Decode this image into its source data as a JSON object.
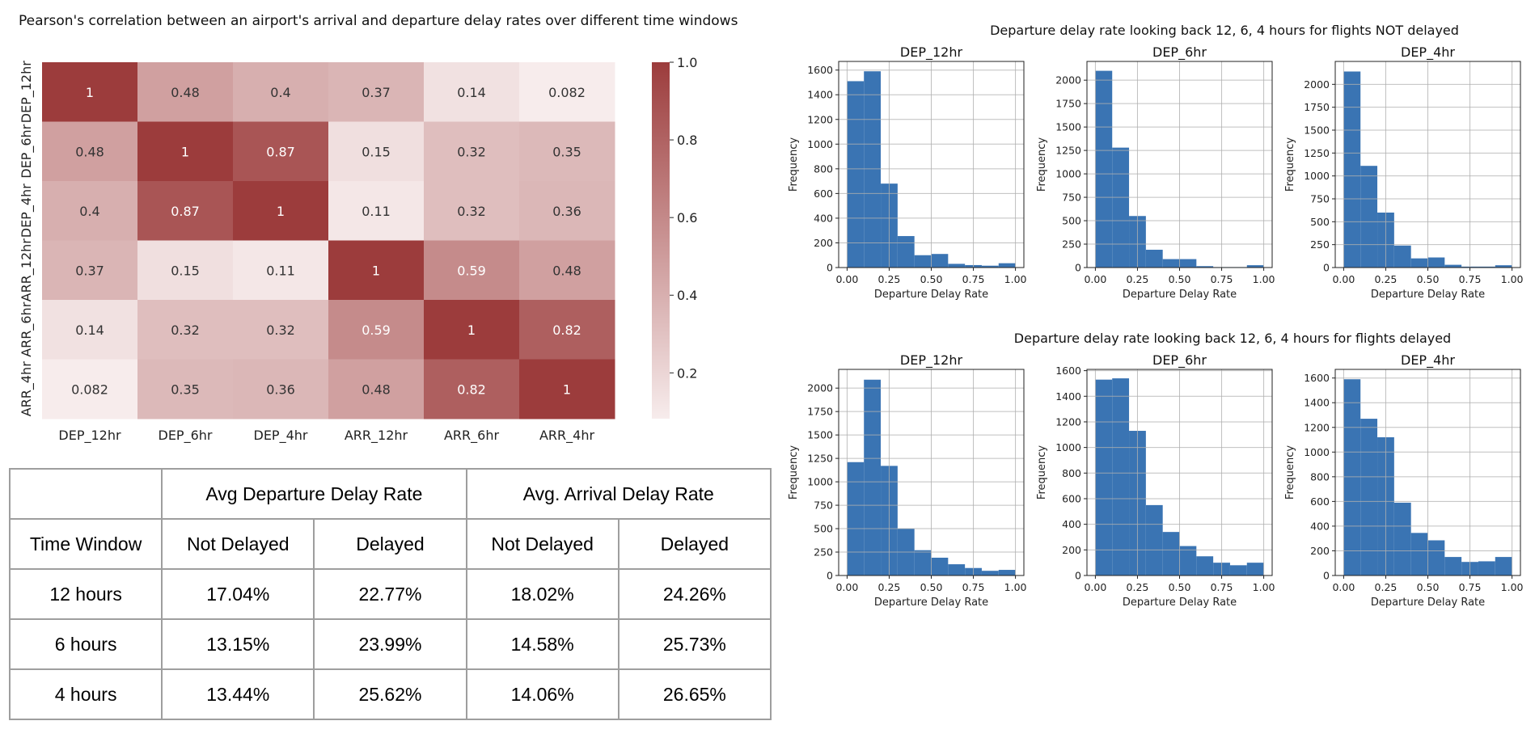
{
  "heatmap_title": "Pearson's correlation between an airport's arrival and departure delay rates over different time windows",
  "colors": {
    "cmap_low": "#f7ecec",
    "cmap_high": "#9c3c3c",
    "bar_fill": "#3a74b3",
    "grid": "#b0b0b0"
  },
  "chart_data": [
    {
      "type": "heatmap",
      "title": "Pearson's correlation between an airport's arrival and departure delay rates over different time windows",
      "x_labels": [
        "DEP_12hr",
        "DEP_6hr",
        "DEP_4hr",
        "ARR_12hr",
        "ARR_6hr",
        "ARR_4hr"
      ],
      "y_labels": [
        "DEP_12hr",
        "DEP_6hr",
        "DEP_4hr",
        "ARR_12hr",
        "ARR_6hr",
        "ARR_4hr"
      ],
      "values": [
        [
          1,
          0.48,
          0.4,
          0.37,
          0.14,
          0.082
        ],
        [
          0.48,
          1,
          0.87,
          0.15,
          0.32,
          0.35
        ],
        [
          0.4,
          0.87,
          1,
          0.11,
          0.32,
          0.36
        ],
        [
          0.37,
          0.15,
          0.11,
          1,
          0.59,
          0.48
        ],
        [
          0.14,
          0.32,
          0.32,
          0.59,
          1,
          0.82
        ],
        [
          0.082,
          0.35,
          0.36,
          0.48,
          0.82,
          1
        ]
      ],
      "value_labels": [
        [
          "1",
          "0.48",
          "0.4",
          "0.37",
          "0.14",
          "0.082"
        ],
        [
          "0.48",
          "1",
          "0.87",
          "0.15",
          "0.32",
          "0.35"
        ],
        [
          "0.4",
          "0.87",
          "1",
          "0.11",
          "0.32",
          "0.36"
        ],
        [
          "0.37",
          "0.15",
          "0.11",
          "1",
          "0.59",
          "0.48"
        ],
        [
          "0.14",
          "0.32",
          "0.32",
          "0.59",
          "1",
          "0.82"
        ],
        [
          "0.082",
          "0.35",
          "0.36",
          "0.48",
          "0.82",
          "1"
        ]
      ],
      "colorbar": {
        "range": [
          0.082,
          1.0
        ],
        "ticks": [
          0.2,
          0.4,
          0.6,
          0.8,
          1.0
        ],
        "tick_labels": [
          "0.2",
          "0.4",
          "0.6",
          "0.8",
          "1.0"
        ]
      }
    },
    {
      "type": "bar",
      "group_title": "Departure delay rate looking back 12, 6, 4 hours for flights NOT delayed",
      "title": "DEP_12hr",
      "xlabel": "Departure Delay Rate",
      "ylabel": "Frequency",
      "bin_edges": [
        0,
        0.1,
        0.2,
        0.3,
        0.4,
        0.5,
        0.6,
        0.7,
        0.8,
        0.9,
        1.0
      ],
      "values": [
        1510,
        1590,
        680,
        255,
        100,
        110,
        30,
        20,
        15,
        35
      ],
      "xlim": [
        -0.05,
        1.05
      ],
      "ylim": [
        0,
        1670
      ],
      "xticks": [
        0,
        0.25,
        0.5,
        0.75,
        1.0
      ],
      "xtick_labels": [
        "0.00",
        "0.25",
        "0.50",
        "0.75",
        "1.00"
      ],
      "yticks": [
        0,
        200,
        400,
        600,
        800,
        1000,
        1200,
        1400,
        1600
      ],
      "ytick_labels": [
        "0",
        "200",
        "400",
        "600",
        "800",
        "1000",
        "1200",
        "1400",
        "1600"
      ],
      "grid": true
    },
    {
      "type": "bar",
      "title": "DEP_6hr",
      "xlabel": "Departure Delay Rate",
      "ylabel": "Frequency",
      "bin_edges": [
        0,
        0.1,
        0.2,
        0.3,
        0.4,
        0.5,
        0.6,
        0.7,
        0.8,
        0.9,
        1.0
      ],
      "values": [
        2100,
        1280,
        550,
        190,
        90,
        90,
        15,
        5,
        5,
        25
      ],
      "xlim": [
        -0.05,
        1.05
      ],
      "ylim": [
        0,
        2200
      ],
      "xticks": [
        0,
        0.25,
        0.5,
        0.75,
        1.0
      ],
      "xtick_labels": [
        "0.00",
        "0.25",
        "0.50",
        "0.75",
        "1.00"
      ],
      "yticks": [
        0,
        250,
        500,
        750,
        1000,
        1250,
        1500,
        1750,
        2000
      ],
      "ytick_labels": [
        "0",
        "250",
        "500",
        "750",
        "1000",
        "1250",
        "1500",
        "1750",
        "2000"
      ],
      "grid": true
    },
    {
      "type": "bar",
      "title": "DEP_4hr",
      "xlabel": "Departure Delay Rate",
      "ylabel": "Frequency",
      "bin_edges": [
        0,
        0.1,
        0.2,
        0.3,
        0.4,
        0.5,
        0.6,
        0.7,
        0.8,
        0.9,
        1.0
      ],
      "values": [
        2140,
        1110,
        600,
        240,
        100,
        110,
        30,
        10,
        10,
        25
      ],
      "xlim": [
        -0.05,
        1.05
      ],
      "ylim": [
        0,
        2250
      ],
      "xticks": [
        0,
        0.25,
        0.5,
        0.75,
        1.0
      ],
      "xtick_labels": [
        "0.00",
        "0.25",
        "0.50",
        "0.75",
        "1.00"
      ],
      "yticks": [
        0,
        250,
        500,
        750,
        1000,
        1250,
        1500,
        1750,
        2000
      ],
      "ytick_labels": [
        "0",
        "250",
        "500",
        "750",
        "1000",
        "1250",
        "1500",
        "1750",
        "2000"
      ],
      "grid": true
    },
    {
      "type": "bar",
      "group_title": "Departure delay rate looking back 12, 6, 4 hours for flights delayed",
      "title": "DEP_12hr",
      "xlabel": "Departure Delay Rate",
      "ylabel": "Frequency",
      "bin_edges": [
        0,
        0.1,
        0.2,
        0.3,
        0.4,
        0.5,
        0.6,
        0.7,
        0.8,
        0.9,
        1.0
      ],
      "values": [
        1210,
        2090,
        1170,
        500,
        270,
        190,
        120,
        80,
        50,
        60
      ],
      "xlim": [
        -0.05,
        1.05
      ],
      "ylim": [
        0,
        2200
      ],
      "xticks": [
        0,
        0.25,
        0.5,
        0.75,
        1.0
      ],
      "xtick_labels": [
        "0.00",
        "0.25",
        "0.50",
        "0.75",
        "1.00"
      ],
      "yticks": [
        0,
        250,
        500,
        750,
        1000,
        1250,
        1500,
        1750,
        2000
      ],
      "ytick_labels": [
        "0",
        "250",
        "500",
        "750",
        "1000",
        "1250",
        "1500",
        "1750",
        "2000"
      ],
      "grid": true
    },
    {
      "type": "bar",
      "title": "DEP_6hr",
      "xlabel": "Departure Delay Rate",
      "ylabel": "Frequency",
      "bin_edges": [
        0,
        0.1,
        0.2,
        0.3,
        0.4,
        0.5,
        0.6,
        0.7,
        0.8,
        0.9,
        1.0
      ],
      "values": [
        1530,
        1540,
        1130,
        550,
        340,
        230,
        150,
        100,
        80,
        100
      ],
      "xlim": [
        -0.05,
        1.05
      ],
      "ylim": [
        0,
        1610
      ],
      "xticks": [
        0,
        0.25,
        0.5,
        0.75,
        1.0
      ],
      "xtick_labels": [
        "0.00",
        "0.25",
        "0.50",
        "0.75",
        "1.00"
      ],
      "yticks": [
        0,
        200,
        400,
        600,
        800,
        1000,
        1200,
        1400,
        1600
      ],
      "ytick_labels": [
        "0",
        "200",
        "400",
        "600",
        "800",
        "1000",
        "1200",
        "1400",
        "1600"
      ],
      "grid": true
    },
    {
      "type": "bar",
      "title": "DEP_4hr",
      "xlabel": "Departure Delay Rate",
      "ylabel": "Frequency",
      "bin_edges": [
        0,
        0.1,
        0.2,
        0.3,
        0.4,
        0.5,
        0.6,
        0.7,
        0.8,
        0.9,
        1.0
      ],
      "values": [
        1590,
        1270,
        1120,
        590,
        345,
        285,
        150,
        110,
        115,
        150
      ],
      "xlim": [
        -0.05,
        1.05
      ],
      "ylim": [
        0,
        1670
      ],
      "xticks": [
        0,
        0.25,
        0.5,
        0.75,
        1.0
      ],
      "xtick_labels": [
        "0.00",
        "0.25",
        "0.50",
        "0.75",
        "1.00"
      ],
      "yticks": [
        0,
        200,
        400,
        600,
        800,
        1000,
        1200,
        1400,
        1600
      ],
      "ytick_labels": [
        "0",
        "200",
        "400",
        "600",
        "800",
        "1000",
        "1200",
        "1400",
        "1600"
      ],
      "grid": true
    }
  ],
  "stats_table": {
    "group_headers": [
      "Avg Departure Delay Rate",
      "Avg. Arrival Delay Rate"
    ],
    "sub_headers": [
      "Time Window",
      "Not Delayed",
      "Delayed",
      "Not Delayed",
      "Delayed"
    ],
    "rows": [
      [
        "12 hours",
        "17.04%",
        "22.77%",
        "18.02%",
        "24.26%"
      ],
      [
        "6 hours",
        "13.15%",
        "23.99%",
        "14.58%",
        "25.73%"
      ],
      [
        "4 hours",
        "13.44%",
        "25.62%",
        "14.06%",
        "26.65%"
      ]
    ]
  }
}
